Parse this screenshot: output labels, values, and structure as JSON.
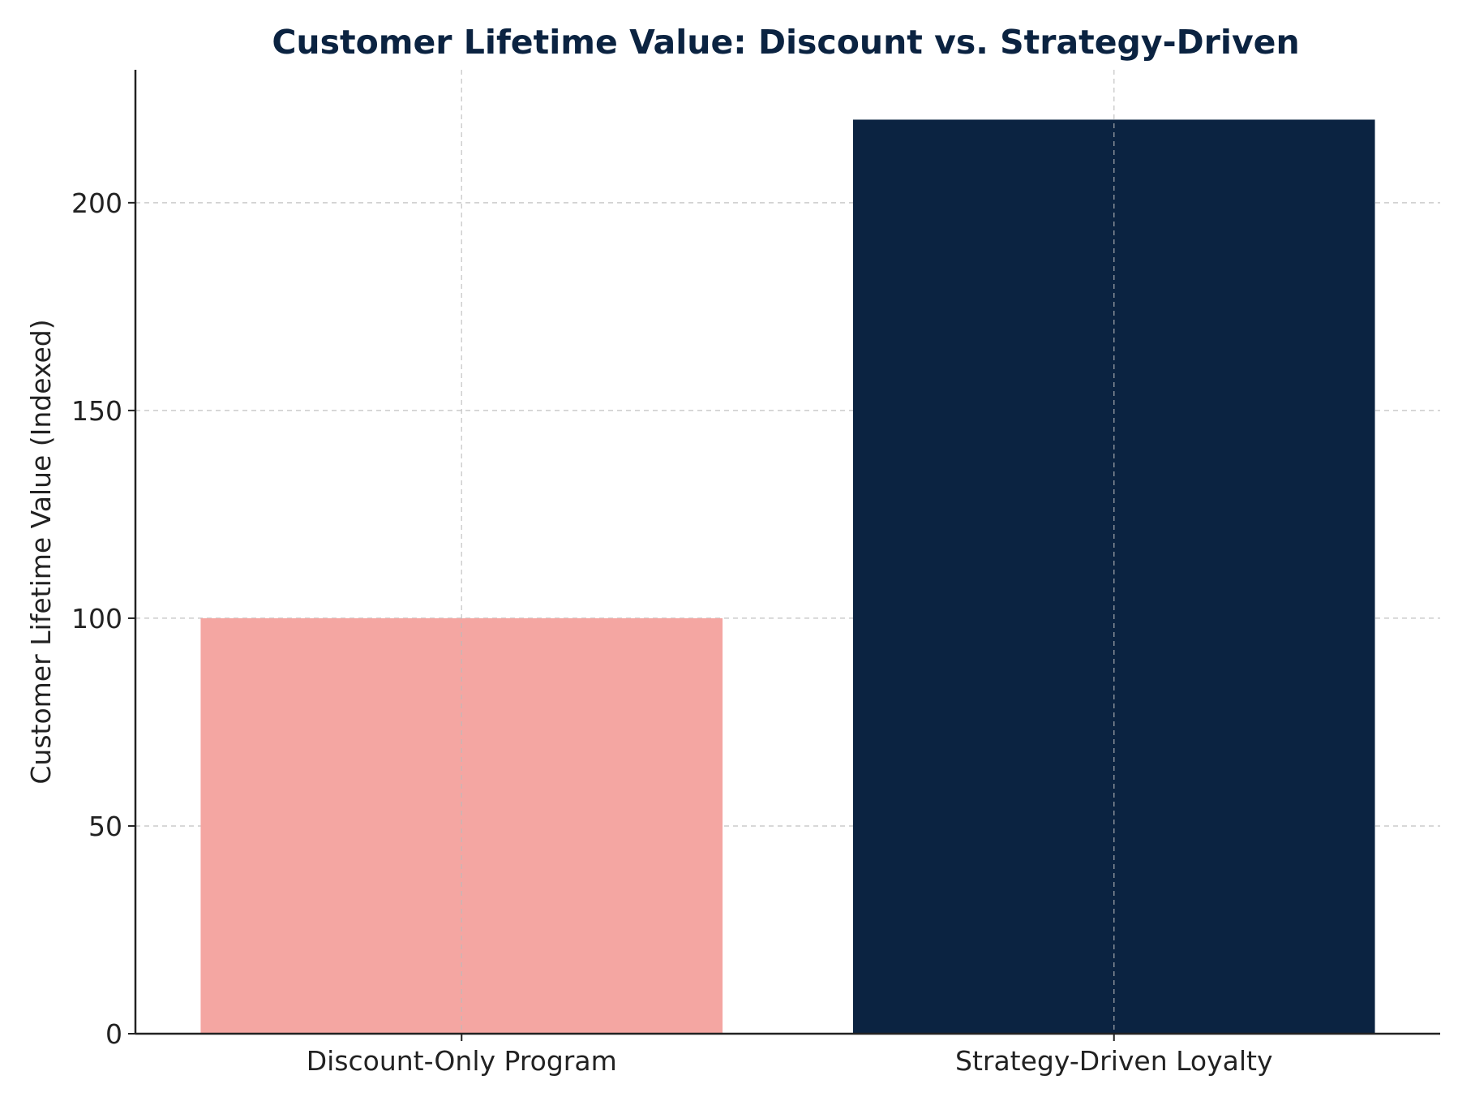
{
  "chart_data": {
    "type": "bar",
    "title": "Customer Lifetime Value: Discount vs. Strategy-Driven",
    "xlabel": "",
    "ylabel": "Customer Lifetime Value (Indexed)",
    "categories": [
      "Discount-Only Program",
      "Strategy-Driven Loyalty"
    ],
    "values": [
      100,
      220
    ],
    "bar_colors": [
      "#f4a6a2",
      "#0b2341"
    ],
    "ylim": [
      0,
      232
    ],
    "yticks": [
      0,
      50,
      100,
      150,
      200
    ],
    "grid": true,
    "grid_style": "dashed",
    "legend": "none",
    "title_color": "#0b2341"
  }
}
